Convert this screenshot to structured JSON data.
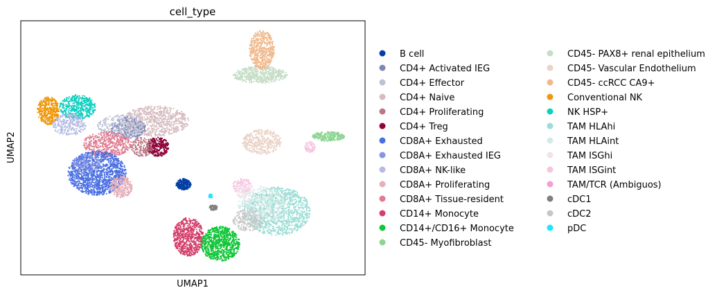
{
  "chart_data": {
    "type": "scatter",
    "title": "cell_type",
    "xlabel": "UMAP1",
    "ylabel": "UMAP2",
    "xticks": [],
    "yticks": [],
    "legend_placement": "right, two columns",
    "categories": [
      {
        "name": "B cell",
        "color": "#023fa5"
      },
      {
        "name": "CD4+ Activated IEG",
        "color": "#7d87b9"
      },
      {
        "name": "CD4+ Effector",
        "color": "#bec1d4"
      },
      {
        "name": "CD4+ Naive",
        "color": "#d6bcc0"
      },
      {
        "name": "CD4+ Proliferating",
        "color": "#bb7784"
      },
      {
        "name": "CD4+ Treg",
        "color": "#8e063b"
      },
      {
        "name": "CD8A+ Exhausted",
        "color": "#4a6fe3"
      },
      {
        "name": "CD8A+ Exhausted IEG",
        "color": "#8595e1"
      },
      {
        "name": "CD8A+ NK-like",
        "color": "#b5bbe3"
      },
      {
        "name": "CD8A+ Proliferating",
        "color": "#e6afb9"
      },
      {
        "name": "CD8A+ Tissue-resident",
        "color": "#e07b91"
      },
      {
        "name": "CD14+ Monocyte",
        "color": "#d33f6a"
      },
      {
        "name": "CD14+/CD16+ Monocyte",
        "color": "#11c638"
      },
      {
        "name": "CD45- Myofibroblast",
        "color": "#8dd593"
      },
      {
        "name": "CD45- PAX8+ renal epithelium",
        "color": "#c6dec7"
      },
      {
        "name": "CD45- Vascular Endothelium",
        "color": "#ead3c6"
      },
      {
        "name": "CD45- ccRCC CA9+",
        "color": "#f0b98d"
      },
      {
        "name": "Conventional NK",
        "color": "#ef9708"
      },
      {
        "name": "NK HSP+",
        "color": "#0fcfc0"
      },
      {
        "name": "TAM HLAhi",
        "color": "#9cded6"
      },
      {
        "name": "TAM HLAint",
        "color": "#d5eae7"
      },
      {
        "name": "TAM ISGhi",
        "color": "#f3e1eb"
      },
      {
        "name": "TAM ISGint",
        "color": "#f6c4e1"
      },
      {
        "name": "TAM/TCR (Ambiguos)",
        "color": "#f79cd4"
      },
      {
        "name": "cDC1",
        "color": "#7f7f7f"
      },
      {
        "name": "cDC2",
        "color": "#c7c7c7"
      },
      {
        "name": "pDC",
        "color": "#1ce6ff"
      }
    ]
  }
}
